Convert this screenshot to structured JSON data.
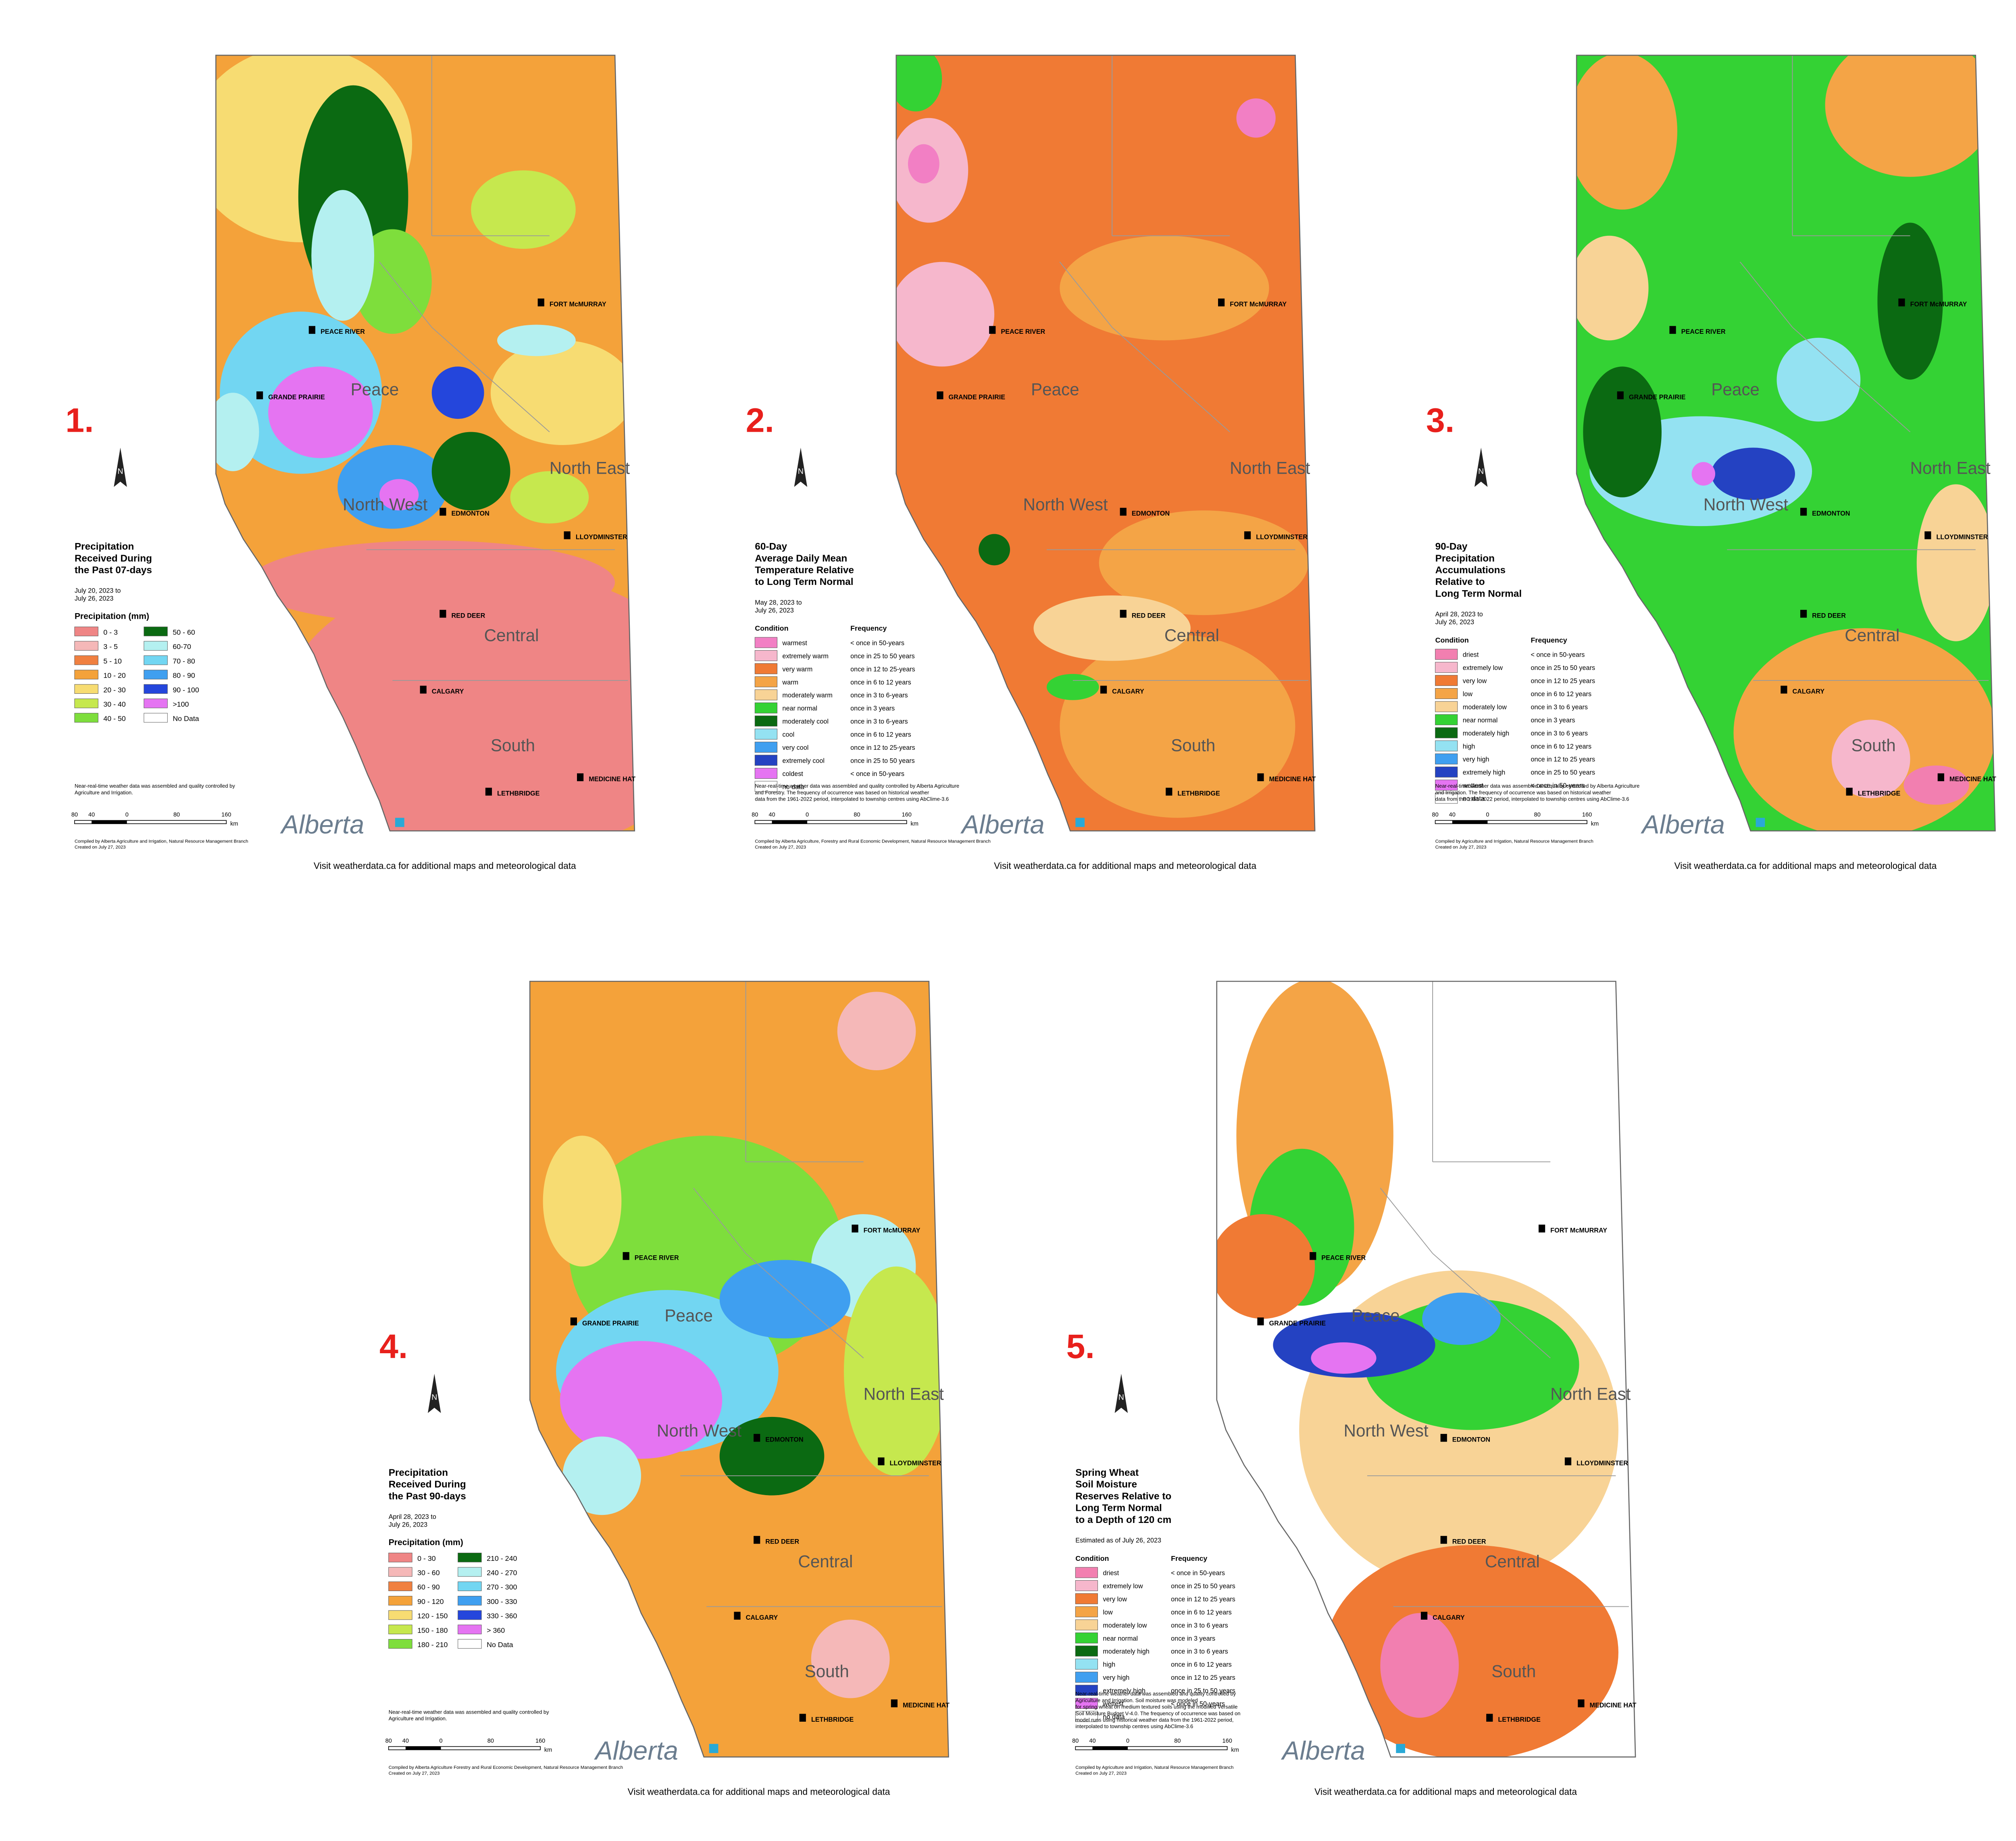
{
  "common": {
    "regions": [
      "Peace",
      "North West",
      "North East",
      "Central",
      "South"
    ],
    "cities": [
      "PEACE RIVER",
      "GRANDE PRAIRIE",
      "FORT McMURRAY",
      "EDMONTON",
      "LLOYDMINSTER",
      "RED DEER",
      "CALGARY",
      "MEDICINE HAT",
      "LETHBRIDGE"
    ],
    "north": "N",
    "scale_ticks": [
      "80",
      "40",
      "0",
      "80",
      "160"
    ],
    "scale_unit": "km",
    "logo": "Alberta",
    "condition_header": "Condition",
    "frequency_header": "Frequency",
    "footer": "Visit weatherdata.ca for additional maps and meteorological data"
  },
  "maps": [
    {
      "number": "1.",
      "title": [
        "Precipitation",
        "Received During",
        "the Past 07-days"
      ],
      "dates": [
        "July 20, 2023 to",
        "July 26, 2023"
      ],
      "legend_title": "Precipitation (mm)",
      "legend": [
        {
          "label": "0 - 3",
          "color": "#ef8585"
        },
        {
          "label": "3 - 5",
          "color": "#f5b8b8"
        },
        {
          "label": "5 - 10",
          "color": "#f08040"
        },
        {
          "label": "10 - 20",
          "color": "#f4a23a"
        },
        {
          "label": "20 - 30",
          "color": "#f7dc72"
        },
        {
          "label": "30 - 40",
          "color": "#c6e84e"
        },
        {
          "label": "40 - 50",
          "color": "#7ede3c"
        },
        {
          "label": "50 - 60",
          "color": "#0b6a12"
        },
        {
          "label": "60-70",
          "color": "#b4f0f0"
        },
        {
          "label": "70 - 80",
          "color": "#72d6f2"
        },
        {
          "label": "80 - 90",
          "color": "#3f9ff0"
        },
        {
          "label": "90 - 100",
          "color": "#2446dc"
        },
        {
          "label": ">100",
          "color": "#e574f2"
        },
        {
          "label": "No Data",
          "color": "#ffffff"
        }
      ],
      "notes": [
        "Near-real-time weather data was assembled and quality controlled by",
        "Agriculture and Irrigation."
      ],
      "credits": [
        "Compiled by Alberta Agriculture and Irrigation, Natural Resource Management Branch",
        "Created on July 27, 2023"
      ]
    },
    {
      "number": "2.",
      "title": [
        "60-Day",
        "Average Daily Mean",
        "Temperature Relative",
        "to Long Term Normal"
      ],
      "dates": [
        "May 28, 2023 to",
        "July 26, 2023"
      ],
      "legend": [
        {
          "condition": "warmest",
          "frequency": "< once in 50-years",
          "color": "#f27fc4"
        },
        {
          "condition": "extremely warm",
          "frequency": "once in 25 to 50 years",
          "color": "#f6b7cc"
        },
        {
          "condition": "very warm",
          "frequency": "once in 12 to 25-years",
          "color": "#f07a34"
        },
        {
          "condition": "warm",
          "frequency": "once in 6 to 12 years",
          "color": "#f4a446"
        },
        {
          "condition": "moderately warm",
          "frequency": "once in 3 to 6-years",
          "color": "#f8d396"
        },
        {
          "condition": "near normal",
          "frequency": "once in 3 years",
          "color": "#34d234"
        },
        {
          "condition": "moderately cool",
          "frequency": "once in 3 to 6-years",
          "color": "#0b6a12"
        },
        {
          "condition": "cool",
          "frequency": "once in 6 to 12 years",
          "color": "#94e2f2"
        },
        {
          "condition": "very cool",
          "frequency": "once in 12 to 25-years",
          "color": "#3f9ff0"
        },
        {
          "condition": "extremely cool",
          "frequency": "once in 25 to 50 years",
          "color": "#2442c2"
        },
        {
          "condition": "coldest",
          "frequency": "< once in 50-years",
          "color": "#e574f2"
        },
        {
          "condition": "no data",
          "frequency": "",
          "color": "#ffffff"
        }
      ],
      "notes": [
        "Near-real-time weather data was assembled and quality controlled by Alberta Agriculture",
        "and Forestry. The frequency of occurrence was based on historical weather",
        "data from the 1961-2022 period, interpolated to township centres using AbClime-3.6"
      ],
      "credits": [
        "Compiled by Alberta Agriculture, Forestry and Rural Economic Development, Natural Resource Management Branch",
        "Created on July 27, 2023"
      ]
    },
    {
      "number": "3.",
      "title": [
        "90-Day",
        "Precipitation",
        "Accumulations",
        "Relative to",
        "Long Term Normal"
      ],
      "dates": [
        "April 28, 2023 to",
        "July 26, 2023"
      ],
      "legend": [
        {
          "condition": "driest",
          "frequency": "< once in 50-years",
          "color": "#f27fb0"
        },
        {
          "condition": "extremely low",
          "frequency": "once in 25 to 50 years",
          "color": "#f6b7cc"
        },
        {
          "condition": "very low",
          "frequency": "once in 12 to 25 years",
          "color": "#f07a34"
        },
        {
          "condition": "low",
          "frequency": "once in 6 to 12 years",
          "color": "#f4a446"
        },
        {
          "condition": "moderately low",
          "frequency": "once in 3 to 6 years",
          "color": "#f8d396"
        },
        {
          "condition": "near normal",
          "frequency": "once in 3 years",
          "color": "#34d234"
        },
        {
          "condition": "moderately high",
          "frequency": "once in 3 to 6 years",
          "color": "#0b6a12"
        },
        {
          "condition": "high",
          "frequency": "once in 6 to 12 years",
          "color": "#94e2f2"
        },
        {
          "condition": "very high",
          "frequency": "once in 12 to 25 years",
          "color": "#3f9ff0"
        },
        {
          "condition": "extremely high",
          "frequency": "once in 25 to 50 years",
          "color": "#2442c2"
        },
        {
          "condition": "wettest",
          "frequency": "< once in 50-years",
          "color": "#e574f2"
        },
        {
          "condition": "no data",
          "frequency": "",
          "color": "#ffffff"
        }
      ],
      "notes": [
        "Near-real-time weather data was assembled and quality controlled by Alberta Agriculture",
        "and Irrigation. The frequency of occurrence was based on historical weather",
        "data from the 1961-2022 period, interpolated to township centres using AbClime-3.6"
      ],
      "credits": [
        "Compiled by Agriculture and Irrigation, Natural Resource Management Branch",
        "Created on July 27, 2023"
      ]
    },
    {
      "number": "4.",
      "title": [
        "Precipitation",
        "Received During",
        "the Past 90-days"
      ],
      "dates": [
        "April 28, 2023 to",
        "July 26, 2023"
      ],
      "legend_title": "Precipitation (mm)",
      "legend": [
        {
          "label": "0 - 30",
          "color": "#ef8585"
        },
        {
          "label": "30 - 60",
          "color": "#f5b8b8"
        },
        {
          "label": "60 - 90",
          "color": "#f08040"
        },
        {
          "label": "90 - 120",
          "color": "#f4a23a"
        },
        {
          "label": "120 - 150",
          "color": "#f7dc72"
        },
        {
          "label": "150 - 180",
          "color": "#c6e84e"
        },
        {
          "label": "180 - 210",
          "color": "#7ede3c"
        },
        {
          "label": "210 - 240",
          "color": "#0b6a12"
        },
        {
          "label": "240 - 270",
          "color": "#b4f0f0"
        },
        {
          "label": "270 - 300",
          "color": "#72d6f2"
        },
        {
          "label": "300 - 330",
          "color": "#3f9ff0"
        },
        {
          "label": "330 - 360",
          "color": "#2446dc"
        },
        {
          "label": "> 360",
          "color": "#e574f2"
        },
        {
          "label": "No Data",
          "color": "#ffffff"
        }
      ],
      "notes": [
        "Near-real-time weather data was assembled and quality controlled by",
        "Agriculture and Irrigation."
      ],
      "credits": [
        "Compiled by Alberta Agriculture Forestry and Rural Economic Development, Natural Resource Management Branch",
        "Created on July 27, 2023"
      ]
    },
    {
      "number": "5.",
      "title": [
        "Spring Wheat",
        "Soil Moisture",
        "Reserves Relative to",
        "Long Term Normal",
        "to a Depth of 120 cm"
      ],
      "dates": [
        "Estimated as of July 26, 2023"
      ],
      "legend": [
        {
          "condition": "driest",
          "frequency": "< once in 50-years",
          "color": "#f27fb0"
        },
        {
          "condition": "extremely low",
          "frequency": "once in 25 to 50 years",
          "color": "#f6b7cc"
        },
        {
          "condition": "very low",
          "frequency": "once in 12 to 25 years",
          "color": "#f07a34"
        },
        {
          "condition": "low",
          "frequency": "once in 6 to 12 years",
          "color": "#f4a446"
        },
        {
          "condition": "moderately low",
          "frequency": "once in 3 to 6 years",
          "color": "#f8d396"
        },
        {
          "condition": "near normal",
          "frequency": "once in 3 years",
          "color": "#34d234"
        },
        {
          "condition": "moderately high",
          "frequency": "once in 3 to 6 years",
          "color": "#0b6a12"
        },
        {
          "condition": "high",
          "frequency": "once in 6 to 12 years",
          "color": "#94e2f2"
        },
        {
          "condition": "very high",
          "frequency": "once in 12 to 25 years",
          "color": "#3f9ff0"
        },
        {
          "condition": "extremely high",
          "frequency": "once in 25 to 50 years",
          "color": "#2442c2"
        },
        {
          "condition": "wettest",
          "frequency": "< once in 50-years",
          "color": "#e574f2"
        },
        {
          "condition": "no data",
          "frequency": "",
          "color": "#ffffff"
        }
      ],
      "notes": [
        "Near-real-time weather data was assembled and quality controlled by",
        "Agriculture and Irrigation. Soil moisture was modeled",
        "for spring wheat on medium textured soils using the modified Versatile",
        "Soil Moisture Budget V-4.0. The frequency of occurrence was based on",
        "model runs using historical weather data from the 1961-2022 period,",
        "interpolated to township centres using AbClime-3.6"
      ],
      "credits": [
        "Compiled by Agriculture and Irrigation, Natural Resource Management Branch",
        "Created on July 27, 2023"
      ]
    }
  ]
}
